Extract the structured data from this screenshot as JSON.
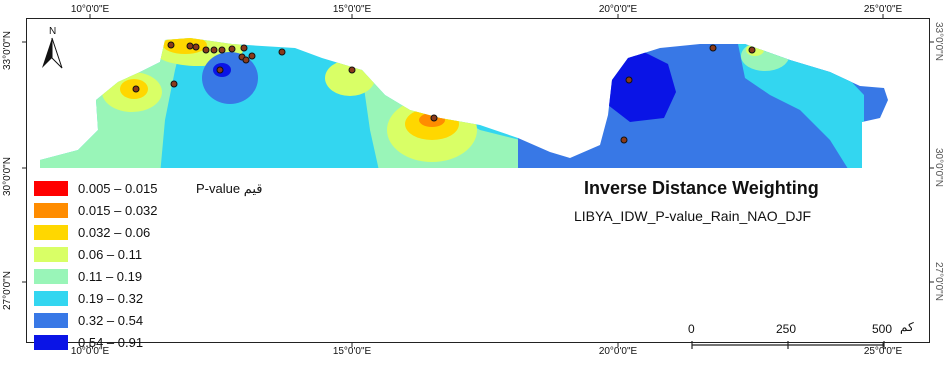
{
  "map": {
    "title": "Inverse Distance Weighting",
    "subtitle": "LIBYA_IDW_P-value_Rain_NAO_DJF",
    "legend_title": "P-value قيم",
    "north_arrow": {
      "label": "N",
      "icon": "north-arrow-icon"
    },
    "axes": {
      "top_ticks": [
        "10°0'0\"E",
        "15°0'0\"E",
        "20°0'0\"E",
        "25°0'0\"E"
      ],
      "bottom_ticks": [
        "10°0'0\"E",
        "15°0'0\"E",
        "20°0'0\"E",
        "25°0'0\"E"
      ],
      "left_ticks": [
        "33°0'0\"N",
        "30°0'0\"N",
        "27°0'0\"N"
      ],
      "right_ticks": [
        "33°0'0\"N",
        "30°0'0\"N",
        "27°0'0\"N"
      ]
    },
    "scale_bar": {
      "labels": [
        "0",
        "250",
        "500"
      ],
      "unit": "كم"
    },
    "legend": [
      {
        "label": "0.005 – 0.015",
        "color": "#ff0000"
      },
      {
        "label": "0.015 – 0.032",
        "color": "#ff8c00"
      },
      {
        "label": "0.032 – 0.06",
        "color": "#ffd700"
      },
      {
        "label": "0.06 – 0.11",
        "color": "#d9ff66"
      },
      {
        "label": "0.11 – 0.19",
        "color": "#99f5b8"
      },
      {
        "label": "0.19 – 0.32",
        "color": "#33d6f0"
      },
      {
        "label": "0.32 – 0.54",
        "color": "#3878e6"
      },
      {
        "label": "0.54 – 0.91",
        "color": "#0a14e6"
      }
    ]
  }
}
